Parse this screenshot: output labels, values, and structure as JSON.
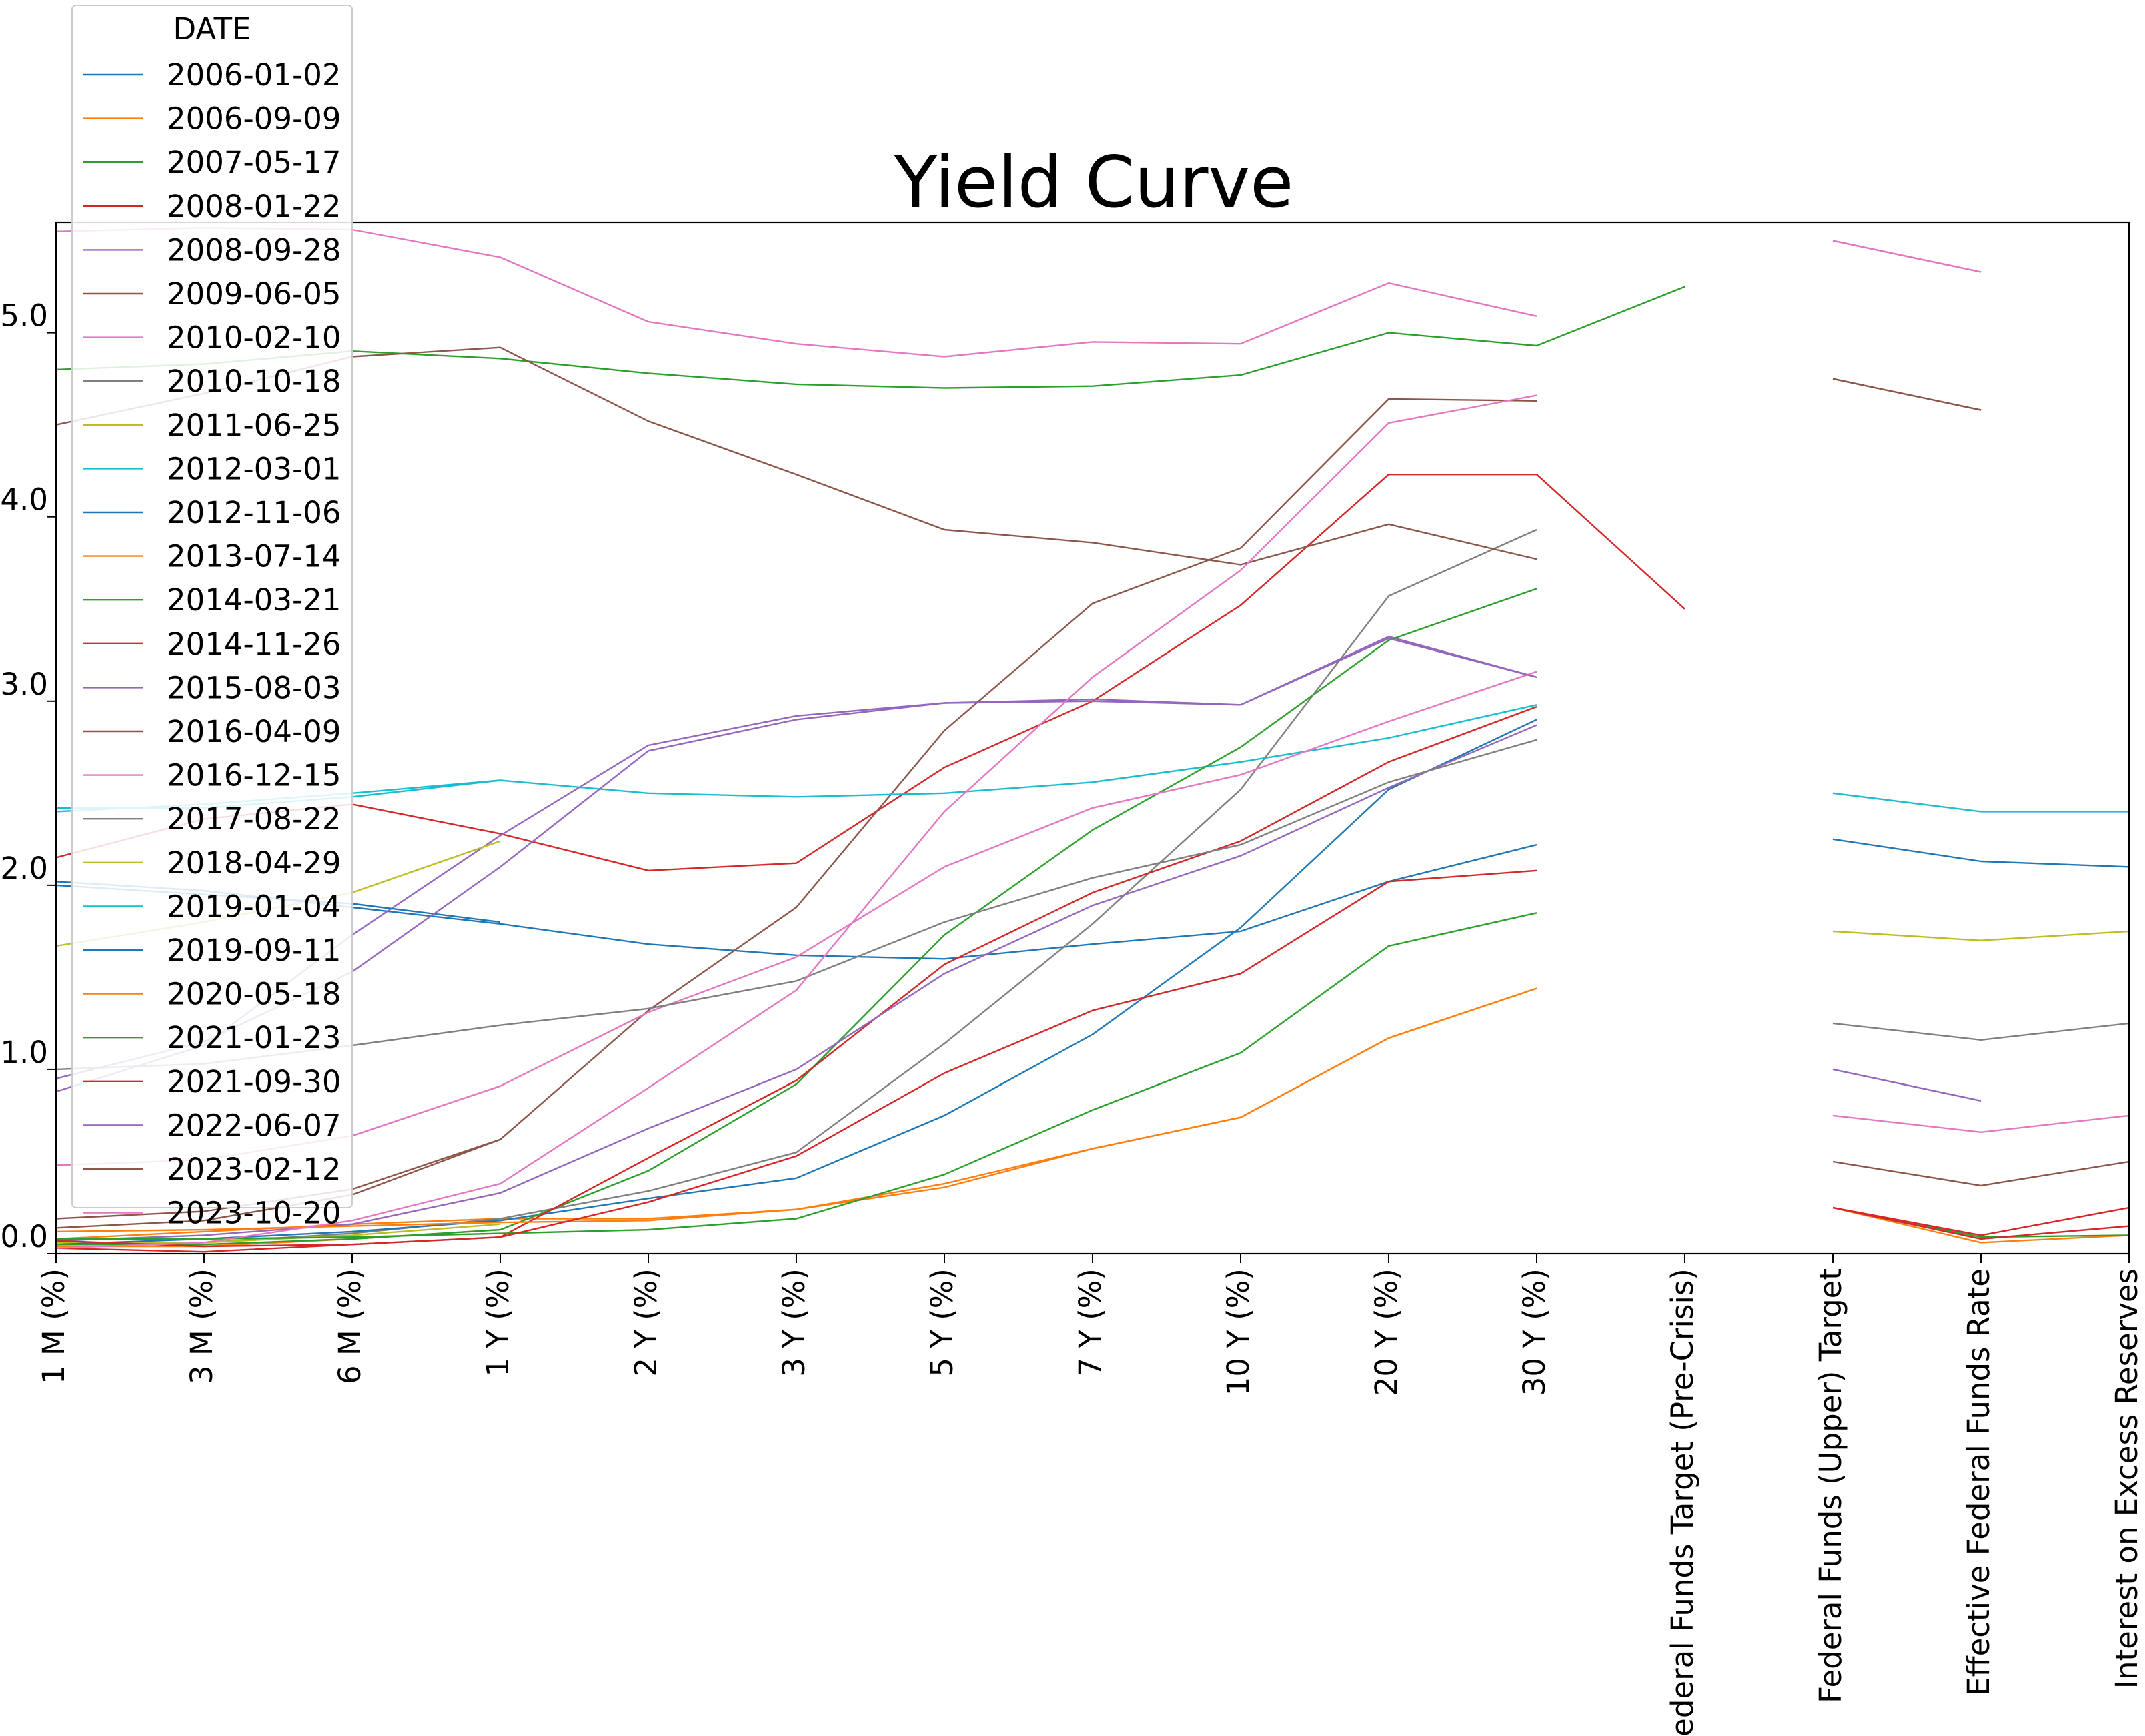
{
  "chart_data": {
    "type": "line",
    "title": "Yield Curve",
    "xlabel": "",
    "ylabel": "",
    "ylim": [
      0,
      5.6
    ],
    "yticks": [
      "0.0",
      "1.0",
      "2.0",
      "3.0",
      "4.0",
      "5.0"
    ],
    "grid": false,
    "legend": {
      "title": "DATE",
      "position": "top-left"
    },
    "categories": [
      "1 M (%)",
      "3 M (%)",
      "6 M (%)",
      "1 Y (%)",
      "2 Y (%)",
      "3 Y (%)",
      "5 Y (%)",
      "7 Y (%)",
      "10 Y (%)",
      "20 Y (%)",
      "30 Y (%)",
      "Federal Funds Target (Pre-Crisis)",
      "Federal Funds (Upper) Target",
      "Effective Federal Funds Rate",
      "Interest on Excess Reserves"
    ],
    "series": [
      {
        "name": "2006-01-02",
        "color": "#1f77b4",
        "values": [
          2.02,
          1.97,
          1.88,
          1.79,
          1.68,
          1.62,
          1.6,
          1.68,
          1.75,
          2.02,
          2.22,
          null,
          null,
          null,
          null
        ]
      },
      {
        "name": "2006-09-09",
        "color": "#ff7f0e",
        "values": [
          0.08,
          0.12,
          0.16,
          0.19,
          0.19,
          0.24,
          0.38,
          0.57,
          0.74,
          1.17,
          1.44,
          null,
          null,
          null,
          null
        ]
      },
      {
        "name": "2007-05-17",
        "color": "#2ca02c",
        "values": [
          4.8,
          4.83,
          4.9,
          4.86,
          4.78,
          4.72,
          4.7,
          4.71,
          4.77,
          5.0,
          4.93,
          5.25,
          null,
          null,
          null
        ]
      },
      {
        "name": "2008-01-22",
        "color": "#d62728",
        "values": [
          2.15,
          2.36,
          2.44,
          2.28,
          2.08,
          2.12,
          2.64,
          3.0,
          3.52,
          4.23,
          4.23,
          3.5,
          null,
          null,
          null
        ]
      },
      {
        "name": "2008-09-28",
        "color": "#9467bd",
        "values": [
          0.88,
          1.13,
          1.73,
          2.27,
          2.76,
          2.92,
          2.99,
          3.01,
          2.98,
          3.35,
          3.13,
          null,
          null,
          null,
          null
        ]
      },
      {
        "name": "2009-06-05",
        "color": "#8c564b",
        "values": [
          0.14,
          0.18,
          0.32,
          0.62,
          1.32,
          1.88,
          2.84,
          3.53,
          3.83,
          4.64,
          4.63,
          null,
          4.75,
          4.58,
          null
        ]
      },
      {
        "name": "2010-02-10",
        "color": "#e377c2",
        "values": [
          5.55,
          5.57,
          5.56,
          5.41,
          5.06,
          4.94,
          4.87,
          4.95,
          4.94,
          5.27,
          5.09,
          null,
          5.5,
          5.33,
          null
        ]
      },
      {
        "name": "2010-10-18",
        "color": "#7f7f7f",
        "values": [
          0.05,
          0.06,
          0.11,
          0.19,
          0.34,
          0.55,
          1.14,
          1.79,
          2.52,
          3.57,
          3.93,
          null,
          null,
          null,
          null
        ]
      },
      {
        "name": "2011-06-25",
        "color": "#bcbd22",
        "values": [
          0.06,
          0.06,
          0.1,
          0.16,
          null,
          null,
          null,
          null,
          null,
          null,
          null,
          null,
          1.75,
          1.7,
          1.75
        ]
      },
      {
        "name": "2012-03-01",
        "color": "#17becf",
        "values": [
          2.4,
          2.44,
          2.5,
          2.57,
          2.5,
          2.48,
          2.5,
          2.56,
          2.67,
          2.8,
          2.98,
          null,
          2.5,
          2.4,
          2.4
        ]
      },
      {
        "name": "2012-11-06",
        "color": "#1f77b4",
        "values": [
          0.05,
          0.08,
          0.12,
          0.18,
          0.3,
          0.41,
          0.75,
          1.19,
          1.77,
          2.52,
          2.9,
          null,
          2.25,
          2.13,
          2.1
        ]
      },
      {
        "name": "2013-07-14",
        "color": "#ff7f0e",
        "values": [
          0.04,
          0.04,
          0.08,
          0.13,
          null,
          null,
          null,
          null,
          null,
          null,
          null,
          null,
          0.25,
          0.06,
          0.1
        ]
      },
      {
        "name": "2014-03-21",
        "color": "#2ca02c",
        "values": [
          0.05,
          0.05,
          0.08,
          0.13,
          0.45,
          0.92,
          1.73,
          2.3,
          2.75,
          3.33,
          3.61,
          null,
          0.25,
          0.09,
          0.1
        ]
      },
      {
        "name": "2014-11-26",
        "color": "#d62728",
        "values": [
          0.03,
          0.01,
          0.05,
          0.09,
          0.52,
          0.94,
          1.57,
          1.96,
          2.24,
          2.67,
          2.97,
          null,
          0.25,
          0.1,
          0.25
        ]
      },
      {
        "name": "2015-08-03",
        "color": "#9467bd",
        "values": [
          0.07,
          0.1,
          0.16,
          0.33,
          0.68,
          1.0,
          1.52,
          1.89,
          2.16,
          2.53,
          2.87,
          null,
          1.0,
          0.83,
          null
        ]
      },
      {
        "name": "2016-04-09",
        "color": "#8c564b",
        "values": [
          0.19,
          0.23,
          0.35,
          0.62,
          null,
          null,
          null,
          null,
          null,
          null,
          null,
          null,
          0.5,
          0.37,
          0.5
        ]
      },
      {
        "name": "2016-12-15",
        "color": "#e377c2",
        "values": [
          0.48,
          0.51,
          0.64,
          0.91,
          1.31,
          1.61,
          2.1,
          2.42,
          2.6,
          2.89,
          3.16,
          null,
          0.75,
          0.66,
          0.75
        ]
      },
      {
        "name": "2017-08-22",
        "color": "#7f7f7f",
        "values": [
          1.0,
          1.03,
          1.13,
          1.24,
          1.33,
          1.48,
          1.8,
          2.04,
          2.22,
          2.56,
          2.79,
          null,
          1.25,
          1.16,
          1.25
        ]
      },
      {
        "name": "2018-04-29",
        "color": "#bcbd22",
        "values": [
          1.67,
          1.8,
          1.96,
          2.24,
          null,
          null,
          null,
          null,
          null,
          null,
          null,
          null,
          null,
          null,
          null
        ]
      },
      {
        "name": "2019-01-04",
        "color": "#17becf",
        "values": [
          2.42,
          2.42,
          2.48,
          2.57,
          null,
          null,
          null,
          null,
          null,
          null,
          null,
          null,
          null,
          null,
          null
        ]
      },
      {
        "name": "2019-09-11",
        "color": "#1f77b4",
        "values": [
          2.0,
          1.95,
          1.9,
          1.8,
          null,
          null,
          null,
          null,
          null,
          null,
          null,
          null,
          null,
          null,
          null
        ]
      },
      {
        "name": "2020-05-18",
        "color": "#ff7f0e",
        "values": [
          0.12,
          0.13,
          0.15,
          0.17,
          0.18,
          0.24,
          0.36,
          0.57,
          0.74,
          1.17,
          1.44,
          null,
          null,
          null,
          null
        ]
      },
      {
        "name": "2021-01-23",
        "color": "#2ca02c",
        "values": [
          0.08,
          0.08,
          0.09,
          0.11,
          0.13,
          0.19,
          0.43,
          0.78,
          1.09,
          1.67,
          1.85,
          null,
          null,
          null,
          null
        ]
      },
      {
        "name": "2021-09-30",
        "color": "#d62728",
        "values": [
          0.07,
          0.04,
          0.05,
          0.09,
          0.28,
          0.53,
          0.98,
          1.32,
          1.52,
          2.02,
          2.08,
          null,
          0.25,
          0.08,
          0.15
        ]
      },
      {
        "name": "2022-06-07",
        "color": "#9467bd",
        "values": [
          0.95,
          1.15,
          1.53,
          2.1,
          2.73,
          2.9,
          2.99,
          3.0,
          2.98,
          3.34,
          3.13,
          null,
          null,
          null,
          null
        ]
      },
      {
        "name": "2023-02-12",
        "color": "#8c564b",
        "values": [
          4.5,
          4.67,
          4.87,
          4.92,
          4.52,
          4.23,
          3.93,
          3.86,
          3.74,
          3.96,
          3.77,
          null,
          4.75,
          4.58,
          null
        ]
      },
      {
        "name": "2023-10-20",
        "color": "#e377c2",
        "values": [
          0.03,
          0.06,
          0.18,
          0.38,
          0.9,
          1.43,
          2.4,
          3.13,
          3.71,
          4.51,
          4.66,
          null,
          5.5,
          5.33,
          null
        ]
      }
    ]
  }
}
